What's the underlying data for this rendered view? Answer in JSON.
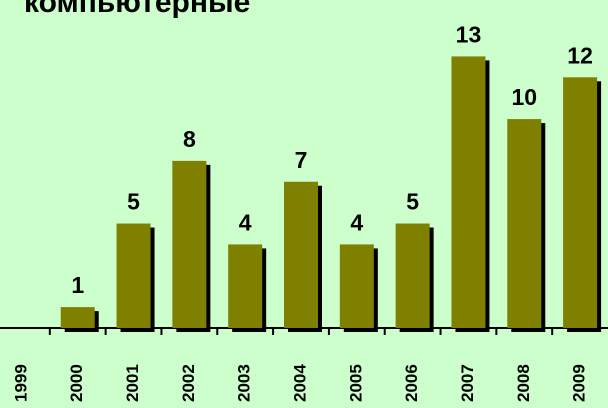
{
  "chart_data": {
    "type": "bar",
    "title": "компьютерные",
    "categories": [
      "1999",
      "2000",
      "2001",
      "2002",
      "2003",
      "2004",
      "2005",
      "2006",
      "2007",
      "2008",
      "2009"
    ],
    "values": [
      null,
      1,
      5,
      8,
      4,
      7,
      4,
      5,
      13,
      10,
      12
    ],
    "color": "#808000",
    "ylim": [
      0,
      15.7
    ]
  }
}
